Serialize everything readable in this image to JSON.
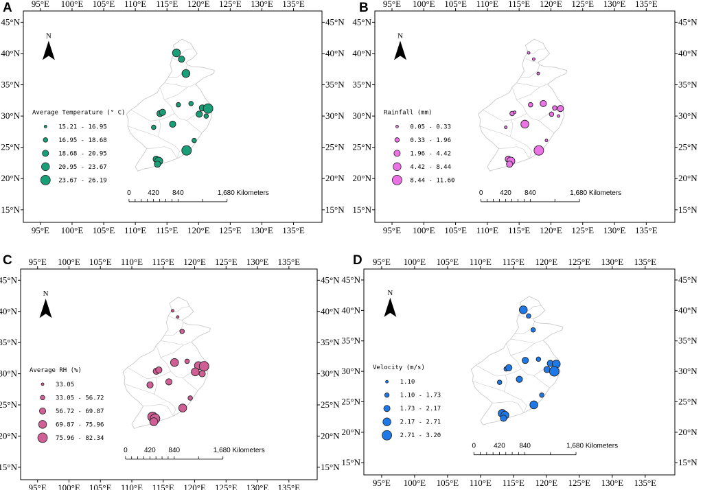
{
  "axes": {
    "lon_labels": [
      "95°E",
      "100°E",
      "105°E",
      "110°E",
      "115°E",
      "120°E",
      "125°E",
      "130°E",
      "135°E"
    ],
    "lat_labels": [
      "45°N",
      "40°N",
      "35°N",
      "30°N",
      "25°N",
      "20°N",
      "15°N"
    ],
    "lon_values": [
      95,
      100,
      105,
      110,
      115,
      120,
      125,
      130,
      135
    ],
    "lat_values": [
      45,
      40,
      35,
      30,
      25,
      20,
      15
    ]
  },
  "north_arrow": {
    "label": "N"
  },
  "scale_bar": {
    "labels": [
      "0",
      "420",
      "840",
      "1,680 Kilometers"
    ]
  },
  "panels": [
    {
      "letter": "A",
      "legend_title": "Average Temperature (° C)",
      "color": "#1a9e78",
      "classes": [
        {
          "label": "15.21 - 16.95"
        },
        {
          "label": "16.95 - 18.68"
        },
        {
          "label": "18.68 - 20.95"
        },
        {
          "label": "20.95 - 23.67"
        },
        {
          "label": "23.67 - 26.19"
        }
      ]
    },
    {
      "letter": "B",
      "legend_title": "Rainfall (mm)",
      "color": "#ea72e5",
      "classes": [
        {
          "label": "0.05 - 0.33"
        },
        {
          "label": "0.33 - 1.96"
        },
        {
          "label": "1.96 - 4.42"
        },
        {
          "label": "4.42 - 8.44"
        },
        {
          "label": "8.44 - 11.60"
        }
      ]
    },
    {
      "letter": "C",
      "legend_title": "Average RH (%)",
      "color": "#cf5f95",
      "classes": [
        {
          "label": "33.05"
        },
        {
          "label": "33.05 - 56.72"
        },
        {
          "label": "56.72 - 69.87"
        },
        {
          "label": "69.87 - 75.96"
        },
        {
          "label": "75.96 - 82.34"
        }
      ]
    },
    {
      "letter": "D",
      "legend_title": "Velocity (m/s)",
      "color": "#1e78e6",
      "classes": [
        {
          "label": "1.10"
        },
        {
          "label": "1.10 - 1.73"
        },
        {
          "label": "1.73 - 2.17"
        },
        {
          "label": "2.17 - 2.71"
        },
        {
          "label": "2.71 - 3.20"
        }
      ]
    }
  ],
  "stations": [
    {
      "lon": 116.5,
      "lat": 40.1
    },
    {
      "lon": 117.3,
      "lat": 39.1
    },
    {
      "lon": 118.0,
      "lat": 36.8
    },
    {
      "lon": 113.9,
      "lat": 30.4
    },
    {
      "lon": 114.3,
      "lat": 30.6
    },
    {
      "lon": 116.8,
      "lat": 31.8
    },
    {
      "lon": 118.8,
      "lat": 32.0
    },
    {
      "lon": 120.6,
      "lat": 31.3
    },
    {
      "lon": 121.5,
      "lat": 31.2
    },
    {
      "lon": 120.1,
      "lat": 30.3
    },
    {
      "lon": 121.2,
      "lat": 30.0
    },
    {
      "lon": 115.9,
      "lat": 28.7
    },
    {
      "lon": 112.9,
      "lat": 28.2
    },
    {
      "lon": 119.3,
      "lat": 26.1
    },
    {
      "lon": 118.1,
      "lat": 24.5
    },
    {
      "lon": 113.3,
      "lat": 23.1
    },
    {
      "lon": 113.7,
      "lat": 22.8
    },
    {
      "lon": 113.5,
      "lat": 22.3
    }
  ],
  "station_classes": {
    "A": [
      4,
      3,
      4,
      3,
      3,
      2,
      2,
      3,
      5,
      3,
      2,
      3,
      2,
      2,
      5,
      3,
      4,
      3
    ],
    "B": [
      1,
      1,
      1,
      2,
      1,
      2,
      3,
      2,
      3,
      2,
      1,
      4,
      1,
      1,
      5,
      3,
      4,
      3
    ],
    "C": [
      1,
      1,
      2,
      3,
      3,
      4,
      2,
      4,
      5,
      4,
      3,
      3,
      3,
      2,
      4,
      5,
      5,
      4
    ],
    "D": [
      4,
      2,
      2,
      2,
      3,
      3,
      2,
      3,
      4,
      3,
      5,
      3,
      2,
      2,
      4,
      4,
      4,
      3
    ]
  }
}
